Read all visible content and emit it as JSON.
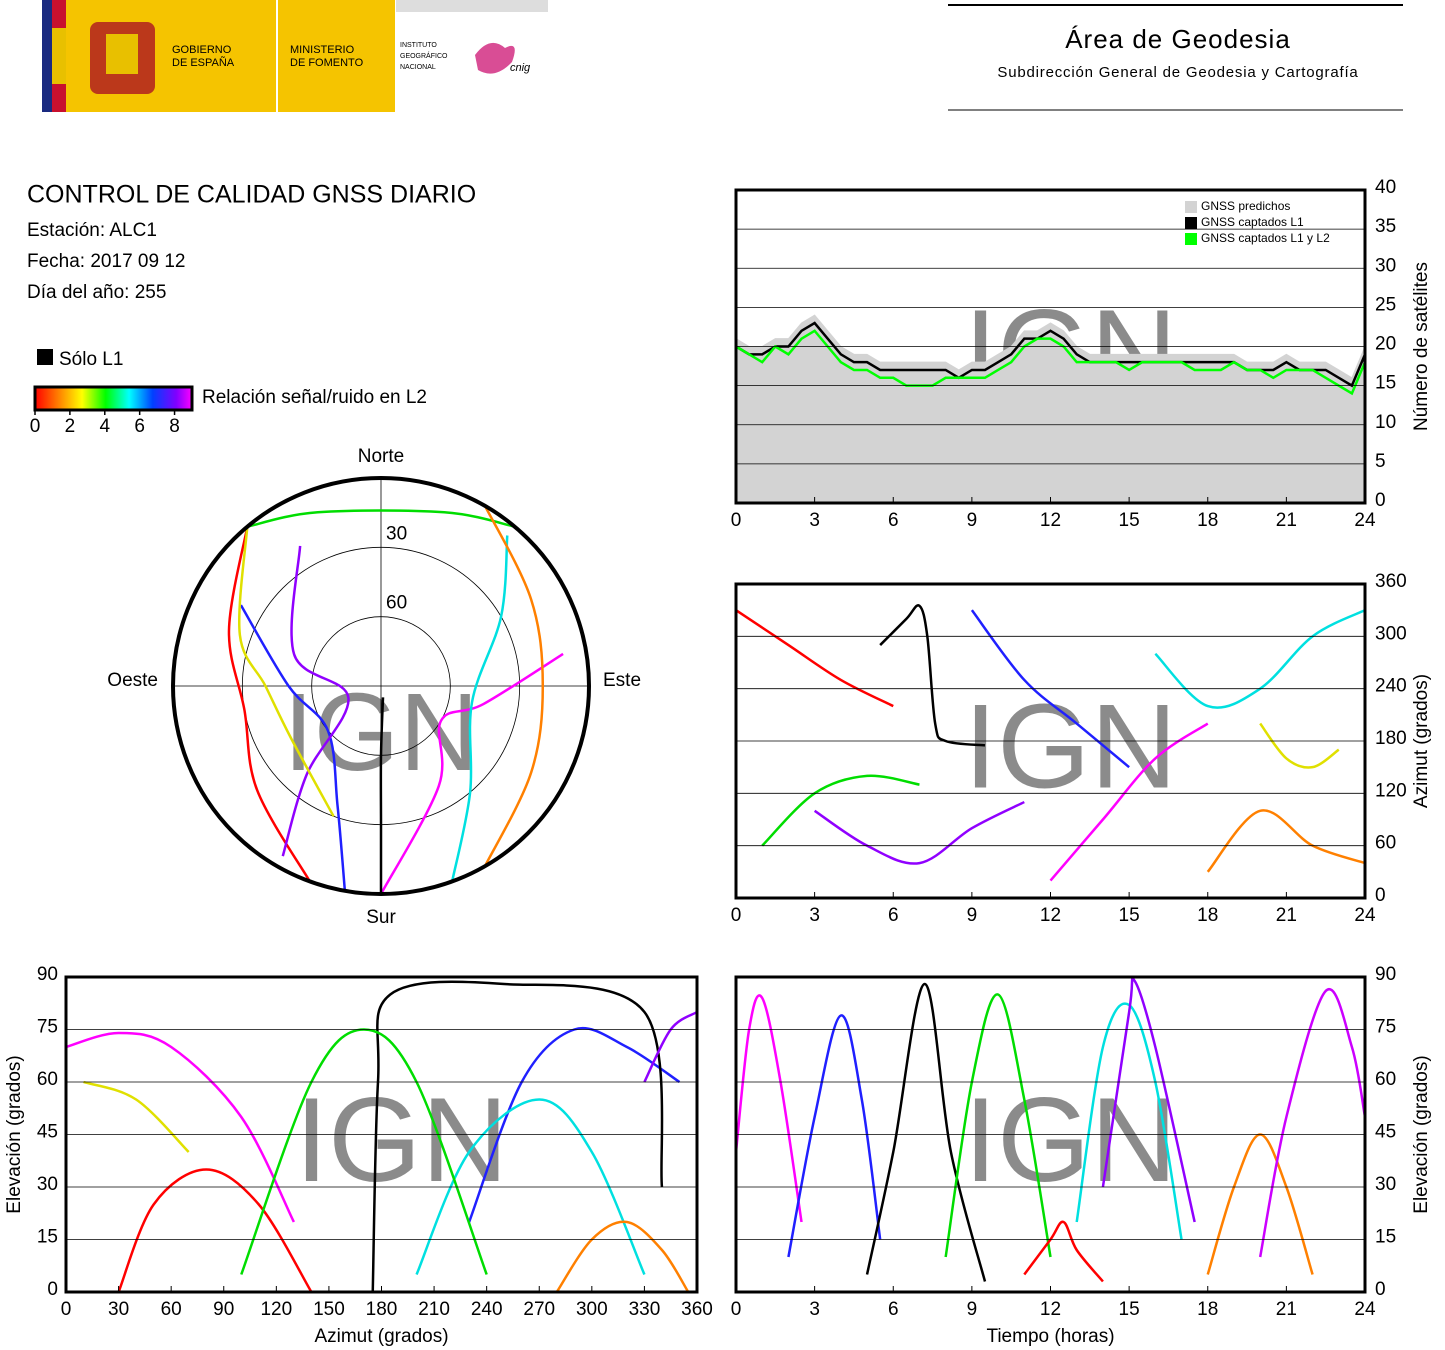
{
  "header": {
    "gov": [
      "GOBIERNO",
      "DE ESPAÑA"
    ],
    "ministry": [
      "MINISTERIO",
      "DE FOMENTO"
    ],
    "institute": [
      "INSTITUTO",
      "GEOGRÁFICO",
      "NACIONAL"
    ],
    "cnig": "cnig",
    "area": "Área de Geodesia",
    "subdirection": "Subdirección General de Geodesia y Cartografía"
  },
  "report": {
    "title": "CONTROL DE CALIDAD GNSS DIARIO",
    "station": "Estación: ALC1",
    "date": "Fecha: 2017 09 12",
    "day": "Día del año: 255"
  },
  "legend": {
    "l1_only": "Sólo L1",
    "snr_label": "Relación señal/ruido en L2",
    "snr_lim": [
      0,
      9
    ],
    "snr_ticks": [
      0,
      2,
      4,
      6,
      8
    ]
  },
  "chart_data": [
    {
      "type": "polar",
      "directions": {
        "north": "Norte",
        "east": "Este",
        "south": "Sur",
        "west": "Oeste"
      },
      "ylim": [
        0,
        90
      ],
      "yticks": [
        30,
        60
      ],
      "watermark": "IGN",
      "series": [
        {
          "color": "#ff0000",
          "x": [
            200,
            230,
            260,
            290,
            320
          ],
          "values": [
            0,
            20,
            30,
            20,
            0
          ]
        },
        {
          "color": "#ff00ff",
          "x": [
            180,
            150,
            120,
            100,
            80
          ],
          "values": [
            0,
            40,
            60,
            45,
            10
          ]
        },
        {
          "color": "#2020ff",
          "x": [
            190,
            200,
            230,
            270,
            300
          ],
          "values": [
            0,
            35,
            60,
            50,
            20
          ]
        },
        {
          "color": "#00dd00",
          "x": [
            320,
            340,
            20,
            40
          ],
          "values": [
            0,
            10,
            10,
            0
          ]
        },
        {
          "color": "#000000",
          "x": [
            180,
            180,
            180,
            170
          ],
          "values": [
            0,
            30,
            60,
            85
          ]
        },
        {
          "color": "#00e0e0",
          "x": [
            160,
            140,
            100,
            60,
            40
          ],
          "values": [
            0,
            30,
            50,
            30,
            5
          ]
        },
        {
          "color": "#9000ff",
          "x": [
            210,
            220,
            250,
            290,
            330
          ],
          "values": [
            5,
            40,
            75,
            50,
            20
          ]
        },
        {
          "color": "#ff8000",
          "x": [
            30,
            60,
            90,
            120,
            150
          ],
          "values": [
            0,
            15,
            20,
            15,
            0
          ]
        },
        {
          "color": "#e0e000",
          "x": [
            320,
            290,
            270,
            240,
            200
          ],
          "values": [
            0,
            25,
            40,
            45,
            30
          ]
        }
      ]
    },
    {
      "type": "line",
      "ylabel": "Número de satélites",
      "xlim": [
        0,
        24
      ],
      "xticks": [
        0,
        3,
        6,
        9,
        12,
        15,
        18,
        21,
        24
      ],
      "ylim": [
        0,
        40
      ],
      "yticks": [
        0,
        5,
        10,
        15,
        20,
        25,
        30,
        35,
        40
      ],
      "grid": true,
      "legend": "top-right",
      "watermark": "IGN",
      "x": [
        0,
        0.5,
        1,
        1.5,
        2,
        2.5,
        3,
        3.5,
        4,
        4.5,
        5,
        5.5,
        6,
        6.5,
        7,
        7.5,
        8,
        8.5,
        9,
        9.5,
        10,
        10.5,
        11,
        11.5,
        12,
        12.5,
        13,
        13.5,
        14,
        14.5,
        15,
        15.5,
        16,
        16.5,
        17,
        17.5,
        18,
        18.5,
        19,
        19.5,
        20,
        20.5,
        21,
        21.5,
        22,
        22.5,
        23,
        23.5,
        24
      ],
      "series": [
        {
          "name": "GNSS predichos",
          "color": "#d3d3d3",
          "area": true,
          "values": [
            21,
            20,
            20,
            21,
            21,
            23,
            24,
            22,
            20,
            19,
            19,
            18,
            18,
            18,
            18,
            18,
            18,
            17,
            18,
            18,
            19,
            20,
            22,
            22,
            23,
            22,
            20,
            19,
            19,
            19,
            19,
            19,
            19,
            19,
            19,
            19,
            19,
            19,
            19,
            18,
            18,
            18,
            19,
            18,
            18,
            18,
            17,
            16,
            20
          ]
        },
        {
          "name": "GNSS captados L1",
          "color": "#000000",
          "values": [
            20,
            19,
            19,
            20,
            20,
            22,
            23,
            21,
            19,
            18,
            18,
            17,
            17,
            17,
            17,
            17,
            17,
            16,
            17,
            17,
            18,
            19,
            21,
            21,
            22,
            21,
            19,
            18,
            18,
            18,
            18,
            18,
            18,
            18,
            18,
            18,
            18,
            18,
            18,
            17,
            17,
            17,
            18,
            17,
            17,
            17,
            16,
            15,
            19
          ]
        },
        {
          "name": "GNSS captados L1 y L2",
          "color": "#00ff00",
          "values": [
            20,
            19,
            18,
            20,
            19,
            21,
            22,
            20,
            18,
            17,
            17,
            16,
            16,
            15,
            15,
            15,
            16,
            16,
            16,
            16,
            17,
            18,
            20,
            21,
            21,
            20,
            18,
            18,
            18,
            18,
            17,
            18,
            18,
            18,
            18,
            17,
            17,
            17,
            18,
            17,
            17,
            16,
            17,
            17,
            17,
            16,
            15,
            14,
            18
          ]
        }
      ]
    },
    {
      "type": "line",
      "ylabel": "Azimut (grados)",
      "xlim": [
        0,
        24
      ],
      "xticks": [
        0,
        3,
        6,
        9,
        12,
        15,
        18,
        21,
        24
      ],
      "ylim": [
        0,
        360
      ],
      "yticks": [
        0,
        60,
        120,
        180,
        240,
        300,
        360
      ],
      "grid": true,
      "watermark": "IGN",
      "series": [
        {
          "color": "#000000",
          "x": [
            5.5,
            6.5,
            7,
            7.3,
            7.6,
            8,
            9.5
          ],
          "values": [
            290,
            320,
            335,
            300,
            200,
            180,
            175
          ]
        },
        {
          "color": "#ff0000",
          "x": [
            0,
            2,
            4,
            6
          ],
          "values": [
            330,
            290,
            250,
            220
          ]
        },
        {
          "color": "#00dd00",
          "x": [
            1,
            3,
            5,
            7
          ],
          "values": [
            60,
            120,
            140,
            130
          ]
        },
        {
          "color": "#2020ff",
          "x": [
            9,
            11,
            13,
            15
          ],
          "values": [
            330,
            250,
            200,
            150
          ]
        },
        {
          "color": "#ff00ff",
          "x": [
            12,
            14,
            16,
            18
          ],
          "values": [
            20,
            90,
            160,
            200
          ]
        },
        {
          "color": "#00e0e0",
          "x": [
            16,
            18,
            20,
            22,
            24
          ],
          "values": [
            280,
            220,
            240,
            300,
            330
          ]
        },
        {
          "color": "#ff8000",
          "x": [
            18,
            20,
            22,
            24
          ],
          "values": [
            30,
            100,
            60,
            40
          ]
        },
        {
          "color": "#9000ff",
          "x": [
            3,
            5,
            7,
            9,
            11
          ],
          "values": [
            100,
            60,
            40,
            80,
            110
          ]
        },
        {
          "color": "#e0e000",
          "x": [
            20,
            21,
            22,
            23
          ],
          "values": [
            200,
            160,
            150,
            170
          ]
        }
      ]
    },
    {
      "type": "line",
      "xlabel": "Azimut (grados)",
      "ylabel": "Elevación (grados)",
      "xlim": [
        0,
        360
      ],
      "xticks": [
        0,
        30,
        60,
        90,
        120,
        150,
        180,
        210,
        240,
        270,
        300,
        330,
        360
      ],
      "ylim": [
        0,
        90
      ],
      "yticks": [
        0,
        15,
        30,
        45,
        60,
        75,
        90
      ],
      "grid": true,
      "watermark": "IGN",
      "series": [
        {
          "color": "#ff00ff",
          "x": [
            0,
            30,
            60,
            100,
            130
          ],
          "values": [
            70,
            74,
            70,
            50,
            20
          ]
        },
        {
          "color": "#2020ff",
          "x": [
            230,
            260,
            290,
            320,
            350
          ],
          "values": [
            20,
            60,
            75,
            70,
            60
          ]
        },
        {
          "color": "#000000",
          "x": [
            175,
            178,
            185,
            250,
            330,
            340
          ],
          "values": [
            0,
            60,
            85,
            88,
            80,
            30
          ]
        },
        {
          "color": "#ff0000",
          "x": [
            30,
            50,
            80,
            110,
            140
          ],
          "values": [
            0,
            25,
            35,
            25,
            0
          ]
        },
        {
          "color": "#00e0e0",
          "x": [
            200,
            230,
            270,
            300,
            330
          ],
          "values": [
            5,
            40,
            55,
            40,
            5
          ]
        },
        {
          "color": "#00dd00",
          "x": [
            100,
            140,
            170,
            200,
            240
          ],
          "values": [
            5,
            60,
            75,
            60,
            5
          ]
        },
        {
          "color": "#9000ff",
          "x": [
            330,
            345,
            360
          ],
          "values": [
            60,
            75,
            80
          ]
        },
        {
          "color": "#ff8000",
          "x": [
            280,
            300,
            320,
            340,
            355
          ],
          "values": [
            0,
            15,
            20,
            12,
            0
          ]
        },
        {
          "color": "#e0e000",
          "x": [
            10,
            40,
            70
          ],
          "values": [
            60,
            55,
            40
          ]
        }
      ]
    },
    {
      "type": "line",
      "xlabel": "Tiempo (horas)",
      "ylabel": "Elevación (grados)",
      "xlim": [
        0,
        24
      ],
      "xticks": [
        0,
        3,
        6,
        9,
        12,
        15,
        18,
        21,
        24
      ],
      "ylim": [
        0,
        90
      ],
      "yticks": [
        0,
        15,
        30,
        45,
        60,
        75,
        90
      ],
      "grid": true,
      "watermark": "IGN",
      "series": [
        {
          "color": "#ff00ff",
          "x": [
            0,
            0.5,
            1,
            1.7,
            2.5
          ],
          "values": [
            40,
            75,
            84,
            60,
            20
          ]
        },
        {
          "color": "#2020ff",
          "x": [
            2,
            3,
            4,
            4.8,
            5.5
          ],
          "values": [
            10,
            50,
            79,
            55,
            15
          ]
        },
        {
          "color": "#000000",
          "x": [
            5,
            6,
            7.2,
            8.2,
            9.5
          ],
          "values": [
            5,
            40,
            88,
            40,
            3
          ]
        },
        {
          "color": "#00dd00",
          "x": [
            8,
            9,
            10,
            11,
            12
          ],
          "values": [
            10,
            60,
            85,
            55,
            10
          ]
        },
        {
          "color": "#ff0000",
          "x": [
            11,
            12,
            12.5,
            13,
            14
          ],
          "values": [
            5,
            15,
            20,
            12,
            3
          ]
        },
        {
          "color": "#00e0e0",
          "x": [
            13,
            14,
            15,
            16,
            17
          ],
          "values": [
            20,
            70,
            82,
            60,
            15
          ]
        },
        {
          "color": "#9000ff",
          "x": [
            14,
            15,
            15.2,
            16,
            17.5
          ],
          "values": [
            30,
            80,
            89,
            70,
            20
          ]
        },
        {
          "color": "#ff8000",
          "x": [
            18,
            19,
            20,
            21,
            22
          ],
          "values": [
            5,
            30,
            45,
            30,
            5
          ]
        },
        {
          "color": "#cc00ff",
          "x": [
            20,
            21,
            22.5,
            23.5,
            24
          ],
          "values": [
            10,
            50,
            86,
            70,
            50
          ]
        }
      ]
    }
  ]
}
